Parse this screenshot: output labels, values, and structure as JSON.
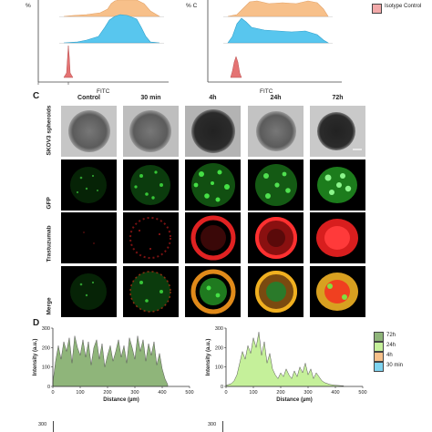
{
  "panel_ab": {
    "left_x_label": "FITC",
    "right_x_label": "FITC",
    "left_y_label_fragment": "%",
    "right_y_label_fragment": "% C",
    "legend_label": "Isotype Control",
    "colors": {
      "orange": "#f7c08a",
      "blue": "#58c6ee",
      "red": "#e47373"
    }
  },
  "panel_c": {
    "letter": "C",
    "columns": [
      "Control",
      "30 min",
      "4h",
      "24h",
      "72h"
    ],
    "rows": [
      "SKOV3 spheroids",
      "GFP",
      "Trastuzumab",
      "Merge"
    ]
  },
  "panel_d": {
    "letter": "D",
    "chart_data": [
      {
        "type": "area",
        "xlabel": "Distance (µm)",
        "ylabel": "Intensity (a.u.)",
        "xlim": [
          0,
          500
        ],
        "ylim": [
          0,
          300
        ],
        "xticks": [
          "0",
          "100",
          "200",
          "300",
          "400",
          "500"
        ],
        "yticks": [
          "0",
          "100",
          "200",
          "300"
        ],
        "series": [
          {
            "name": "72h",
            "color": "#8fb57a",
            "x": [
              0,
              10,
              20,
              30,
              40,
              50,
              60,
              70,
              80,
              90,
              100,
              110,
              120,
              130,
              140,
              150,
              160,
              170,
              180,
              190,
              200,
              210,
              220,
              230,
              240,
              250,
              260,
              270,
              280,
              290,
              300,
              310,
              320,
              330,
              340,
              350,
              360,
              370,
              380,
              390,
              400,
              410,
              420
            ],
            "y": [
              20,
              130,
              210,
              140,
              230,
              180,
              250,
              120,
              260,
              200,
              160,
              240,
              150,
              230,
              110,
              200,
              240,
              140,
              220,
              100,
              160,
              210,
              130,
              180,
              240,
              150,
              210,
              120,
              250,
              200,
              140,
              260,
              180,
              240,
              130,
              220,
              160,
              230,
              110,
              170,
              90,
              40,
              10
            ]
          }
        ]
      },
      {
        "type": "area",
        "xlabel": "Distance (µm)",
        "ylabel": "Intensity (a.u.)",
        "xlim": [
          0,
          500
        ],
        "ylim": [
          0,
          300
        ],
        "xticks": [
          "0",
          "100",
          "200",
          "300",
          "400",
          "500"
        ],
        "yticks": [
          "0",
          "100",
          "200",
          "300"
        ],
        "series": [
          {
            "name": "24h",
            "color": "#c5f09a",
            "x": [
              0,
              10,
              20,
              30,
              40,
              50,
              60,
              70,
              80,
              90,
              100,
              110,
              120,
              130,
              140,
              150,
              160,
              170,
              180,
              190,
              200,
              210,
              220,
              230,
              240,
              250,
              260,
              270,
              280,
              290,
              300,
              310,
              320,
              330,
              340,
              350,
              360,
              370,
              380,
              390,
              400,
              410,
              420,
              430
            ],
            "y": [
              5,
              10,
              15,
              30,
              60,
              120,
              180,
              140,
              210,
              170,
              250,
              200,
              280,
              160,
              230,
              120,
              170,
              90,
              60,
              40,
              70,
              50,
              90,
              60,
              40,
              80,
              50,
              100,
              70,
              120,
              60,
              90,
              40,
              70,
              50,
              30,
              20,
              15,
              10,
              8,
              6,
              5,
              4,
              3
            ]
          }
        ]
      }
    ],
    "legend": [
      {
        "label": "72h",
        "color": "#8fb57a"
      },
      {
        "label": "24h",
        "color": "#c5f09a"
      },
      {
        "label": "4h",
        "color": "#f7c08a"
      },
      {
        "label": "30 min",
        "color": "#7fd4f0"
      }
    ],
    "bottom_left_tick": "300",
    "bottom_right_tick": "300"
  }
}
